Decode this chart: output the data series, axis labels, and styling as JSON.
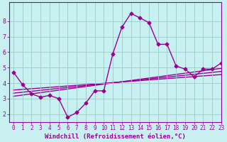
{
  "xlabel": "Windchill (Refroidissement éolien,°C)",
  "bg_color": "#c8f0f0",
  "line_color": "#990099",
  "x_data": [
    0,
    1,
    2,
    3,
    4,
    5,
    6,
    7,
    8,
    9,
    10,
    11,
    12,
    13,
    14,
    15,
    16,
    17,
    18,
    19,
    20,
    21,
    22,
    23
  ],
  "y_main": [
    4.7,
    3.9,
    3.3,
    3.1,
    3.2,
    3.0,
    1.8,
    2.1,
    2.7,
    3.5,
    3.5,
    5.9,
    7.6,
    8.5,
    8.2,
    7.9,
    6.5,
    6.5,
    5.1,
    4.9,
    4.4,
    4.9,
    4.9,
    5.3
  ],
  "reg_lines": [
    {
      "x": [
        0,
        23
      ],
      "y": [
        3.55,
        4.55
      ]
    },
    {
      "x": [
        0,
        23
      ],
      "y": [
        3.35,
        4.75
      ]
    },
    {
      "x": [
        0,
        23
      ],
      "y": [
        3.15,
        4.95
      ]
    }
  ],
  "xlim": [
    -0.5,
    23
  ],
  "ylim": [
    1.5,
    9.2
  ],
  "yticks": [
    2,
    3,
    4,
    5,
    6,
    7,
    8
  ],
  "xticks": [
    0,
    1,
    2,
    3,
    4,
    5,
    6,
    7,
    8,
    9,
    10,
    11,
    12,
    13,
    14,
    15,
    16,
    17,
    18,
    19,
    20,
    21,
    22,
    23
  ],
  "grid_color": "#99cccc",
  "marker": "D",
  "marker_size": 2.5,
  "line_width": 1.0,
  "tick_fontsize": 5.5,
  "xlabel_fontsize": 6.5
}
